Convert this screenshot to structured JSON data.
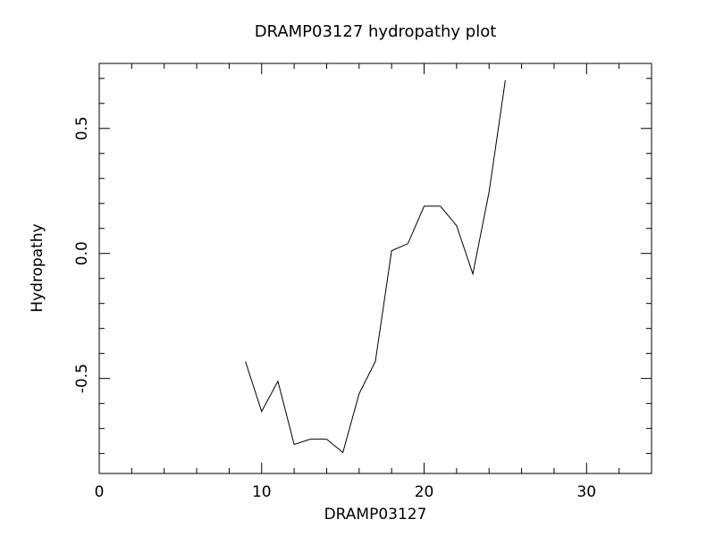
{
  "chart_data": {
    "type": "line",
    "title": "DRAMP03127 hydropathy plot",
    "x_label": "DRAMP03127",
    "y_label": "Hydropathy",
    "x": [
      9,
      10,
      11,
      12,
      13,
      14,
      15,
      16,
      17,
      18,
      19,
      20,
      21,
      22,
      23,
      24,
      25
    ],
    "values": [
      -0.432,
      -0.632,
      -0.511,
      -0.764,
      -0.743,
      -0.743,
      -0.796,
      -0.561,
      -0.432,
      0.011,
      0.039,
      0.189,
      0.189,
      0.111,
      -0.082,
      0.246,
      0.693
    ],
    "color": "#000000",
    "xlim": [
      0,
      34
    ],
    "ylim": [
      -0.88,
      0.76
    ],
    "xticks": [
      0,
      10,
      20,
      30
    ],
    "yticks": [
      -0.5,
      {
        "value": 0,
        "label": "0.0"
      },
      0.5
    ],
    "xminorticks": [
      2,
      4,
      6,
      8,
      12,
      14,
      16,
      18,
      22,
      24,
      26,
      28,
      32
    ],
    "yminorticks": [
      -0.8,
      -0.7,
      -0.6,
      -0.4,
      -0.3,
      -0.2,
      -0.1,
      0.1,
      0.2,
      0.3,
      0.4,
      0.6,
      0.7
    ]
  }
}
